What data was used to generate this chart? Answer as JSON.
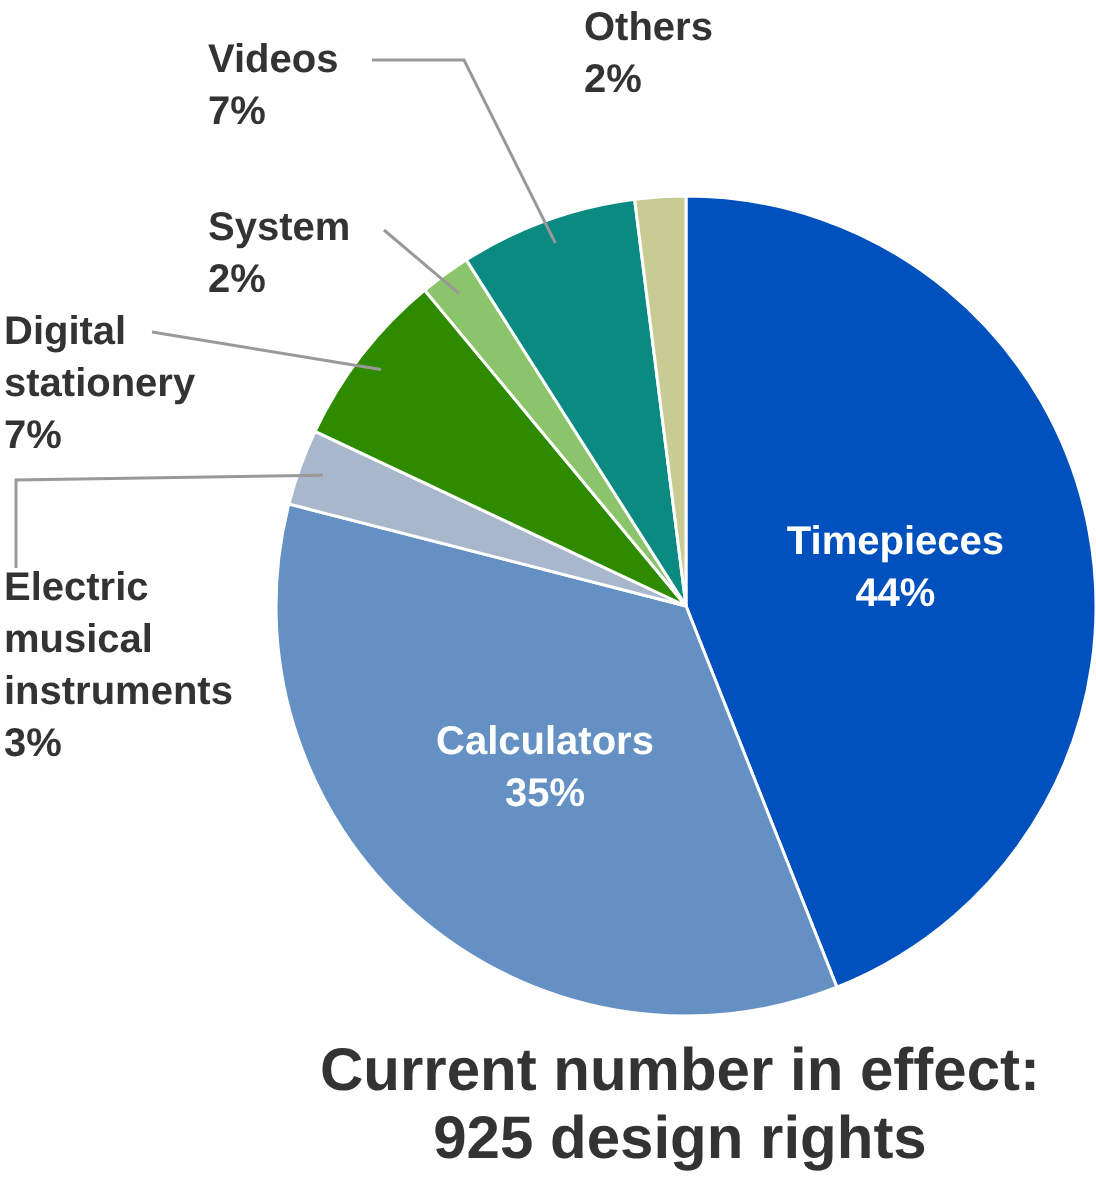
{
  "chart_data": {
    "type": "pie",
    "title": "Current number in effect: 925 design rights",
    "categories": [
      "Timepieces",
      "Calculators",
      "Electric musical instruments",
      "Digital stationery",
      "System",
      "Videos",
      "Others"
    ],
    "values": [
      44,
      35,
      3,
      7,
      2,
      7,
      2
    ],
    "value_labels": [
      "44%",
      "35%",
      "3%",
      "7%",
      "2%",
      "7%",
      "2%"
    ],
    "colors": [
      "#0050be",
      "#6490c4",
      "#a9b7cc",
      "#2e8b00",
      "#8bc46a",
      "#0a8a80",
      "#c8cc94"
    ]
  }
}
